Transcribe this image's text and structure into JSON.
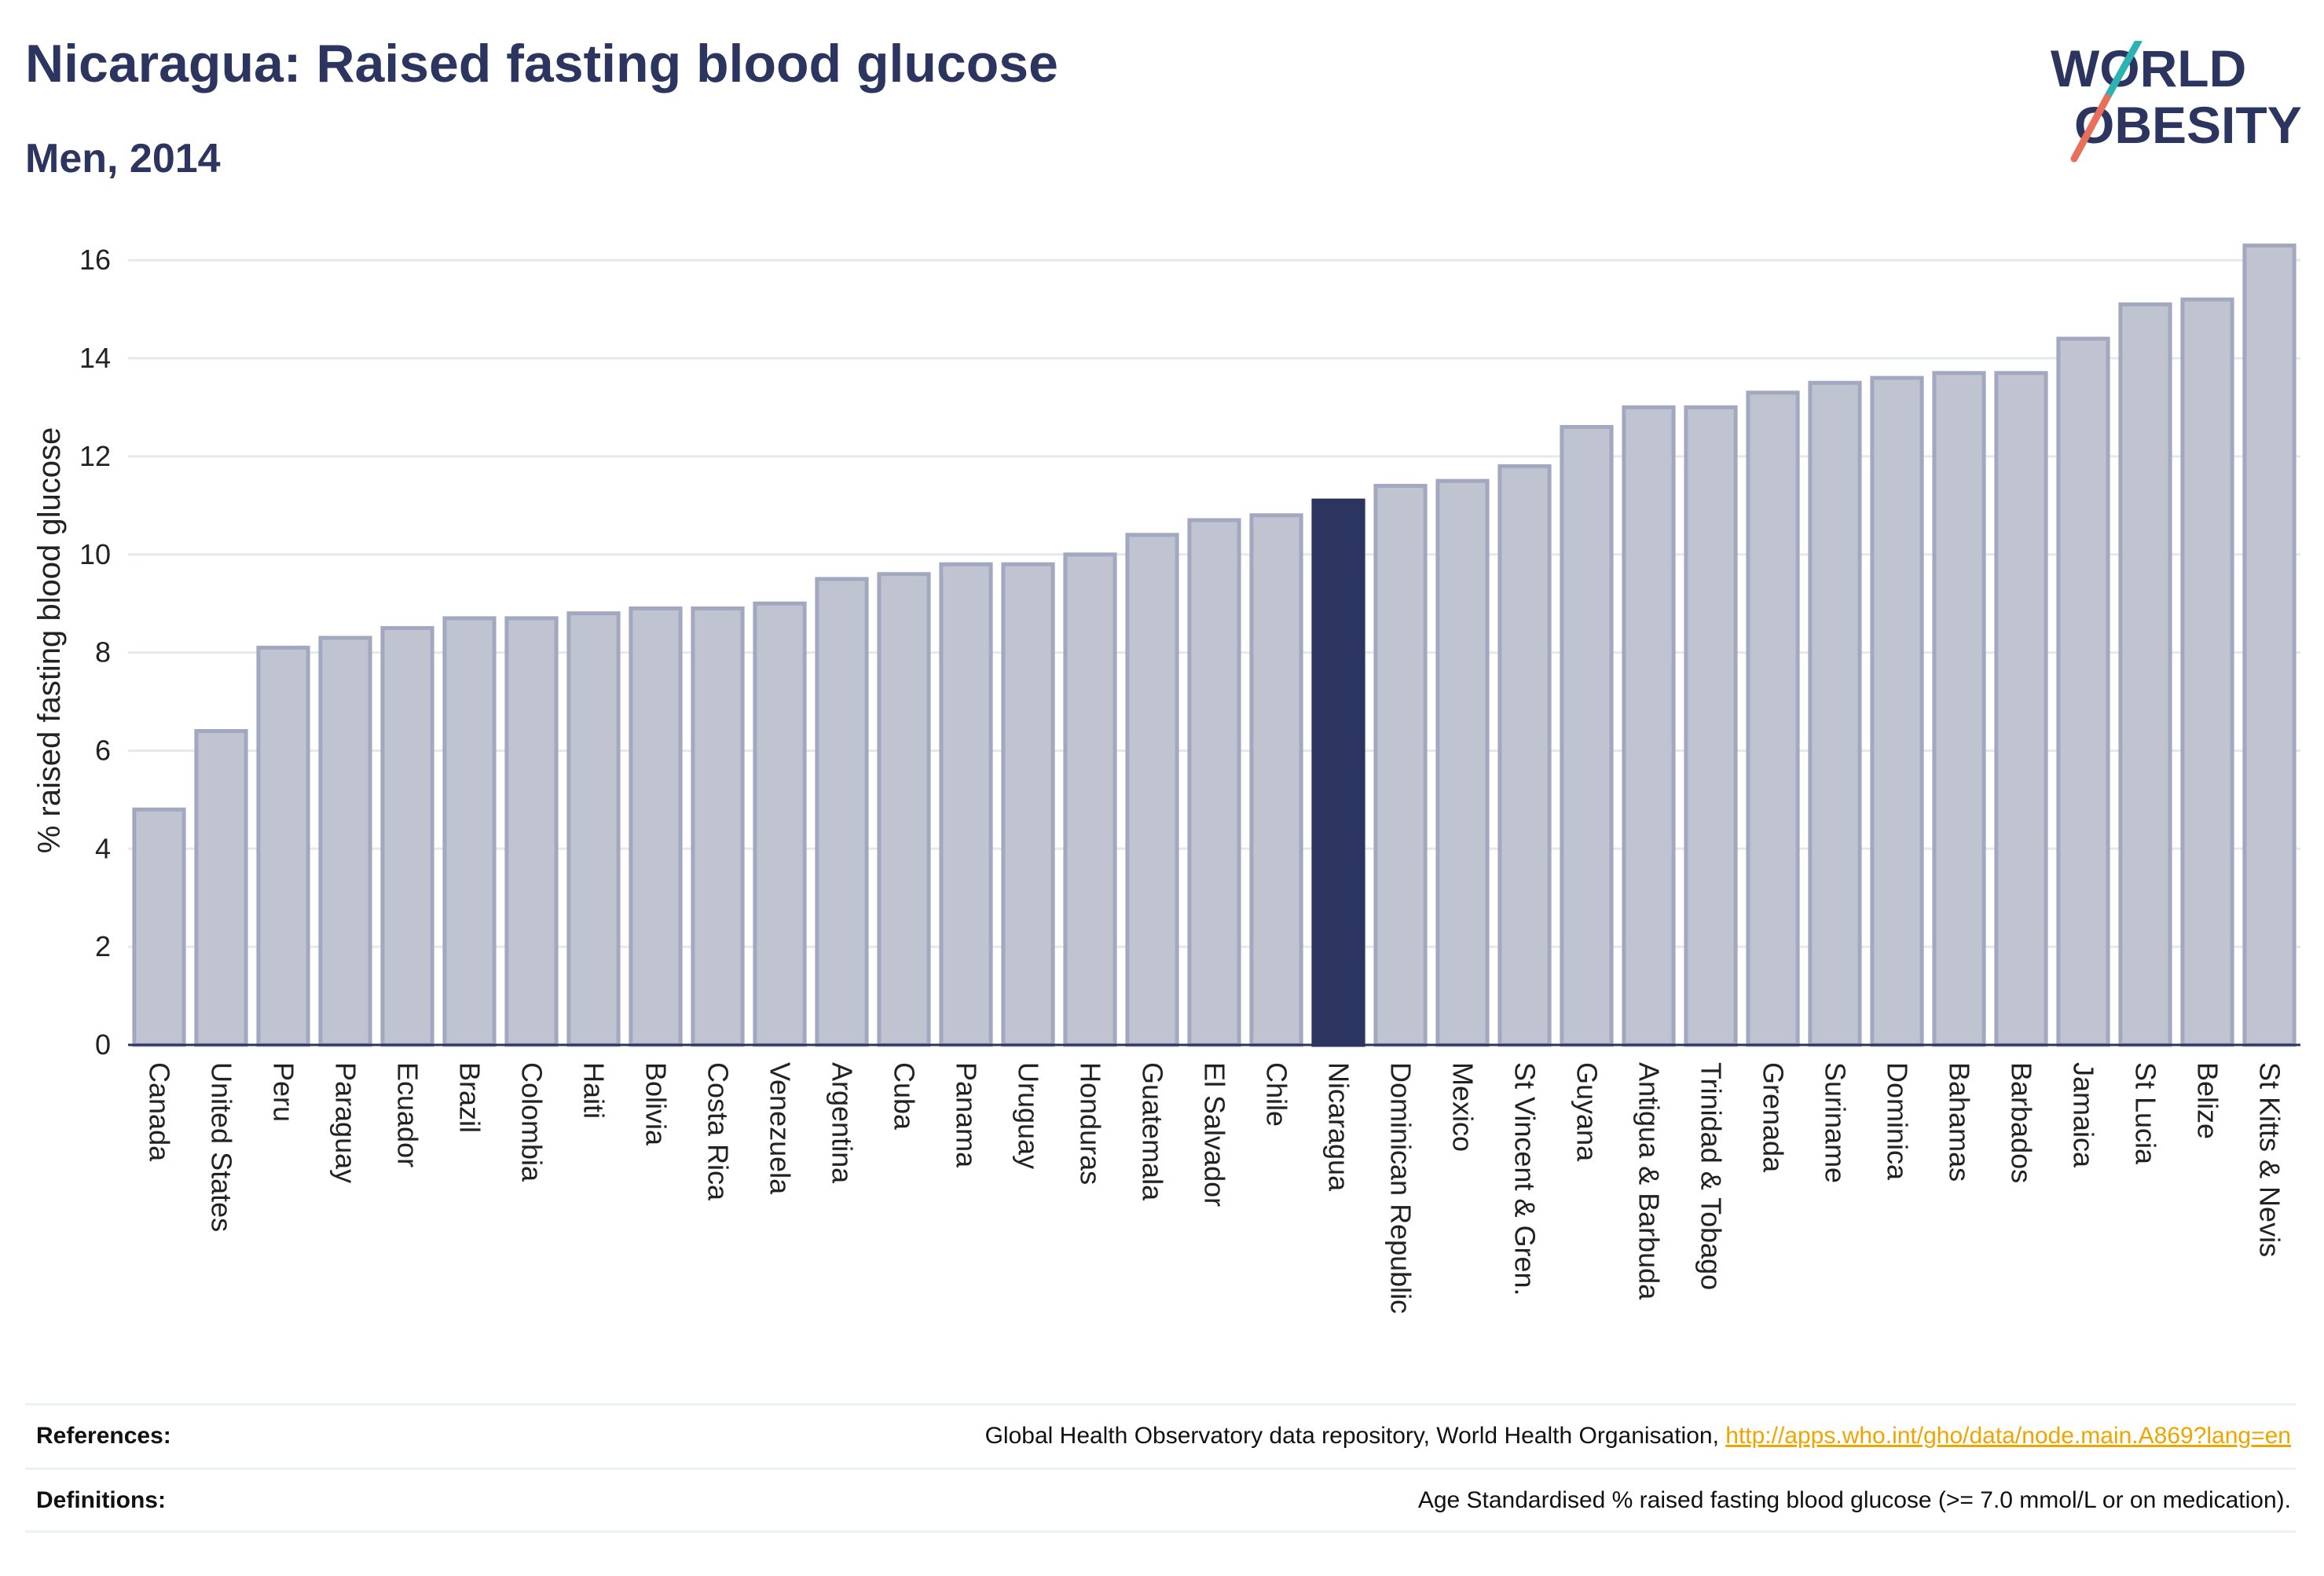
{
  "header": {
    "title": "Nicaragua: Raised fasting blood glucose",
    "subtitle": "Men, 2014"
  },
  "logo": {
    "line1": "WORLD",
    "line2": "OBESITY"
  },
  "footer": {
    "references_label": "References:",
    "references_text": "Global Health Observatory data repository, World Health Organisation, ",
    "references_link": "http://apps.who.int/gho/data/node.main.A869?lang=en",
    "definitions_label": "Definitions:",
    "definitions_text": "Age Standardised % raised fasting blood glucose (>= 7.0 mmol/L or on medication)."
  },
  "colors": {
    "bar_fill": "#c0c4d1",
    "bar_stroke": "#a2a8bf",
    "highlight": "#2b3560",
    "title": "#2b3560",
    "link": "#f0a400"
  },
  "chart_data": {
    "type": "bar",
    "ylabel": "% raised fasting blood glucose",
    "ylim": [
      0,
      16.5
    ],
    "yticks": [
      0,
      2,
      4,
      6,
      8,
      10,
      12,
      14,
      16
    ],
    "grid": true,
    "highlight": "Nicaragua",
    "categories": [
      "Canada",
      "United States",
      "Peru",
      "Paraguay",
      "Ecuador",
      "Brazil",
      "Colombia",
      "Haiti",
      "Bolivia",
      "Costa Rica",
      "Venezuela",
      "Argentina",
      "Cuba",
      "Panama",
      "Uruguay",
      "Honduras",
      "Guatemala",
      "El Salvador",
      "Chile",
      "Nicaragua",
      "Dominican Republic",
      "Mexico",
      "St Vincent & Gren.",
      "Guyana",
      "Antigua & Barbuda",
      "Trinidad & Tobago",
      "Grenada",
      "Suriname",
      "Dominica",
      "Bahamas",
      "Barbados",
      "Jamaica",
      "St Lucia",
      "Belize",
      "St Kitts & Nevis"
    ],
    "values": [
      4.8,
      6.4,
      8.1,
      8.3,
      8.5,
      8.7,
      8.7,
      8.8,
      8.9,
      8.9,
      9.0,
      9.5,
      9.6,
      9.8,
      9.8,
      10.0,
      10.4,
      10.7,
      10.8,
      11.1,
      11.4,
      11.5,
      11.8,
      12.6,
      13.0,
      13.0,
      13.3,
      13.5,
      13.6,
      13.7,
      13.7,
      14.4,
      15.1,
      15.2,
      16.3
    ]
  }
}
